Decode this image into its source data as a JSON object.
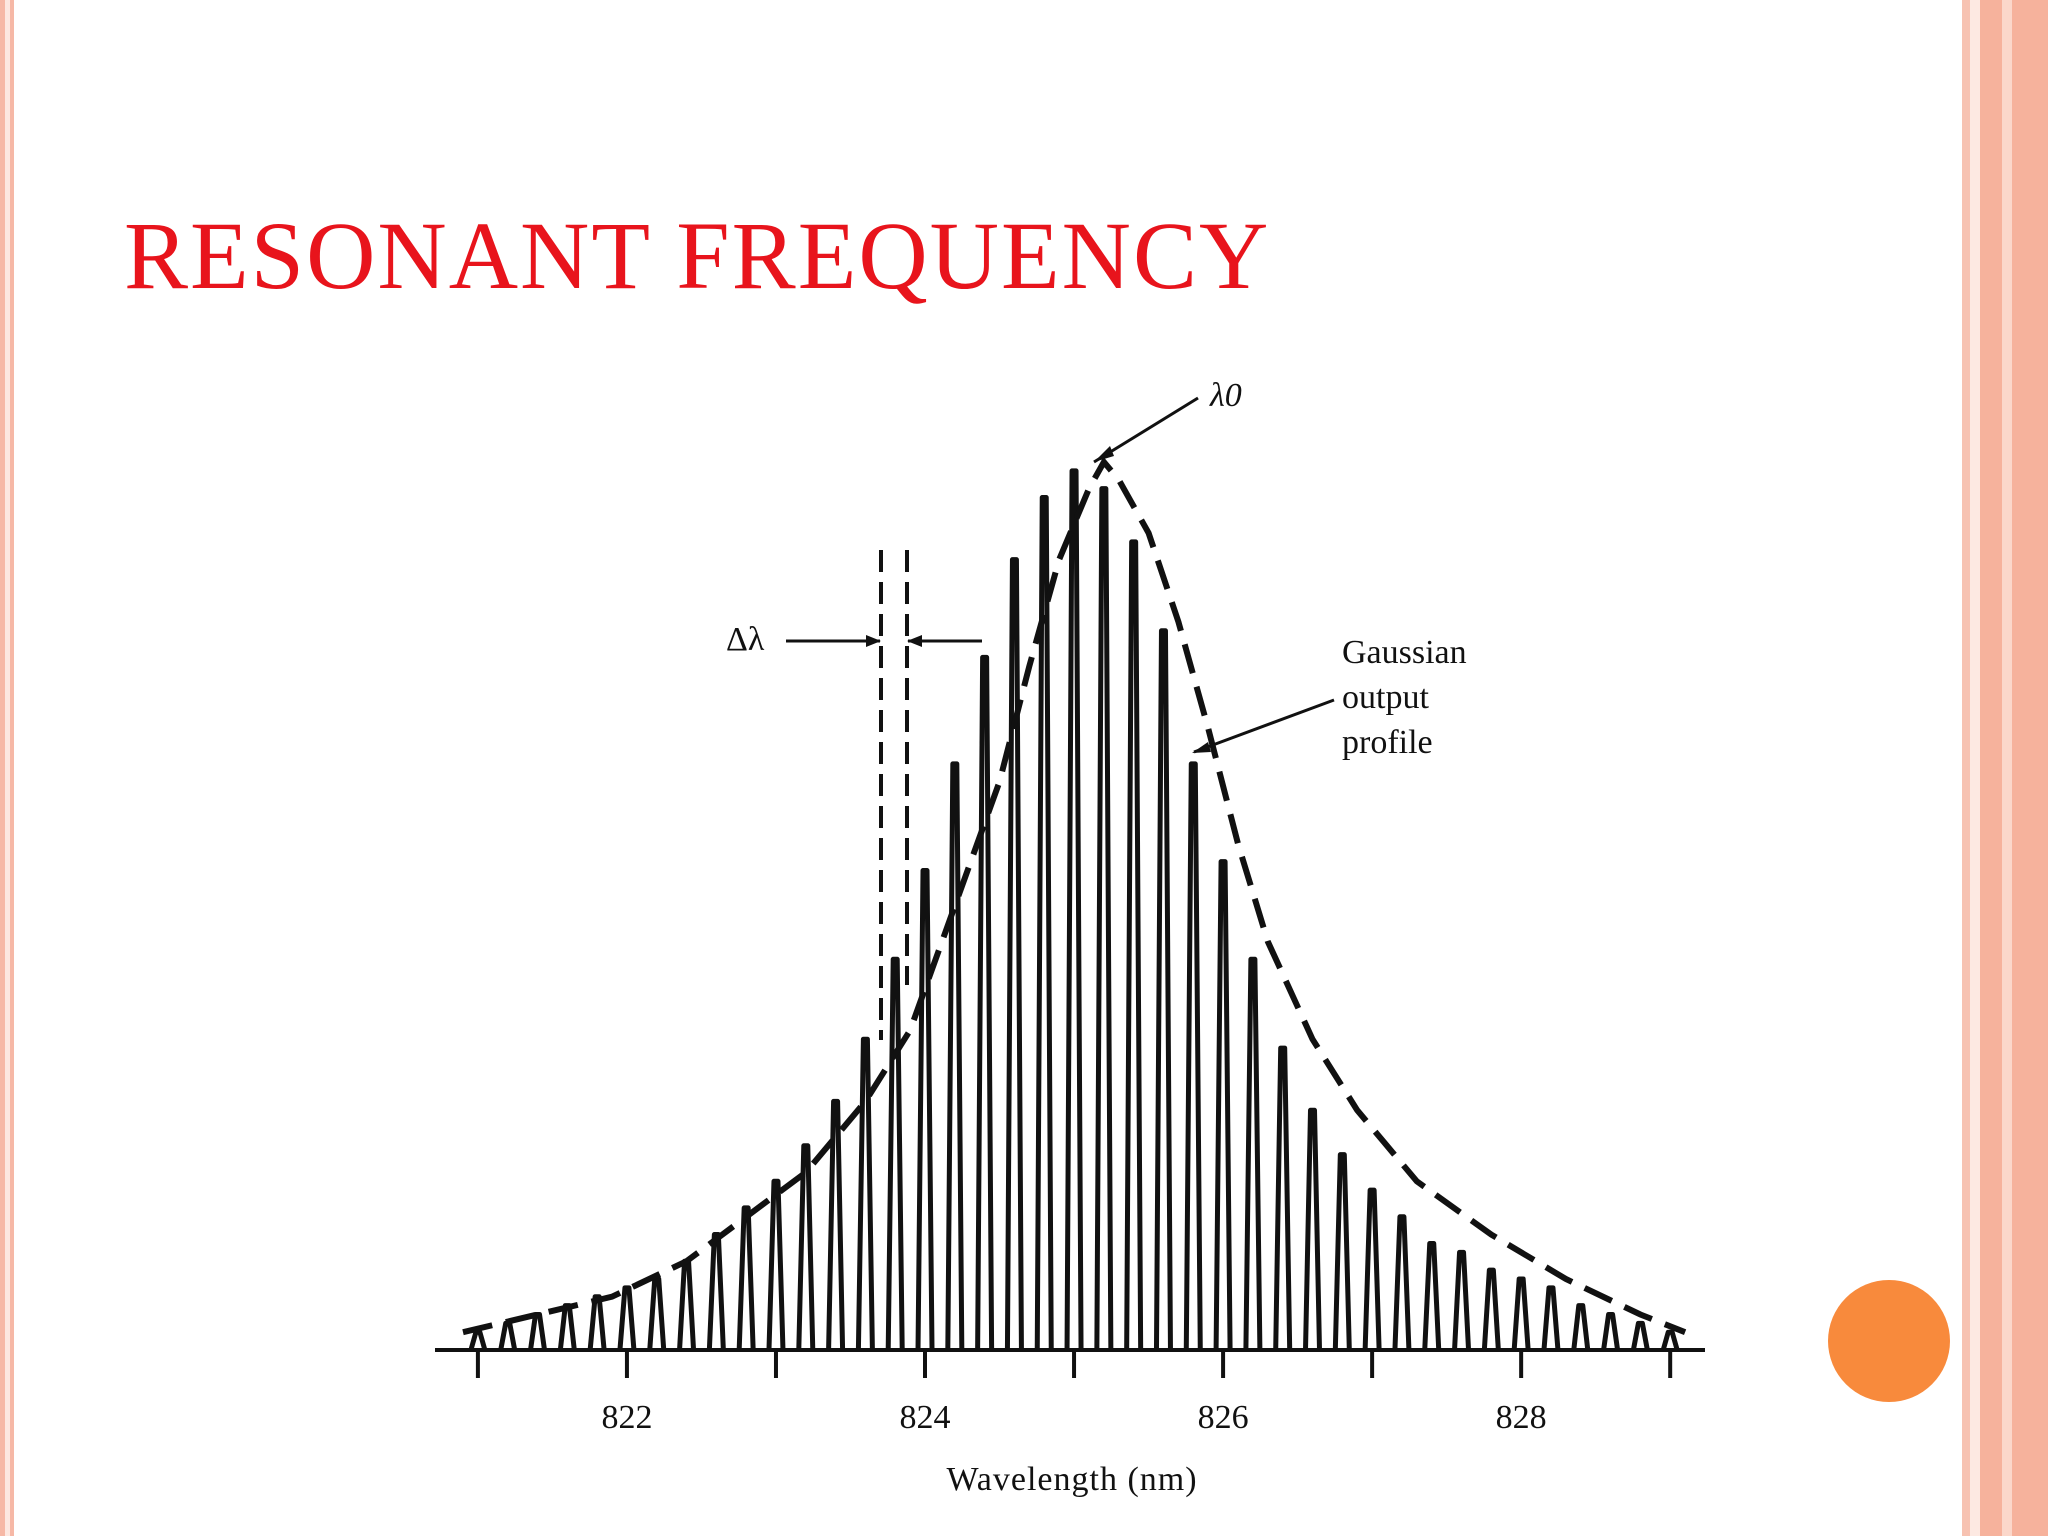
{
  "slide": {
    "title": "RESONANT FREQUENCY",
    "title_color": "#e8141c",
    "accent_color": "#f88a3c"
  },
  "chart_data": {
    "type": "line",
    "xlabel": "Wavelength (nm)",
    "ylabel": "",
    "title": "",
    "xticks": [
      821,
      822,
      823,
      824,
      825,
      826,
      827,
      828,
      829
    ],
    "xtick_labels": [
      "822",
      "824",
      "826",
      "828"
    ],
    "xlim": [
      820.9,
      829.2
    ],
    "ylim": [
      0,
      1
    ],
    "grid": false,
    "annotations": {
      "peak_label": "λ0",
      "spacing_label": "Δλ",
      "envelope_label": [
        "Gaussian",
        "output",
        "profile"
      ]
    },
    "series": [
      {
        "style": "solid spikes",
        "x": [
          821.0,
          821.2,
          821.4,
          821.6,
          821.8,
          822.0,
          822.2,
          822.4,
          822.6,
          822.8,
          823.0,
          823.2,
          823.4,
          823.6,
          823.8,
          824.0,
          824.2,
          824.4,
          824.6,
          824.8,
          825.0,
          825.2,
          825.4,
          825.6,
          825.8,
          826.0,
          826.2,
          826.4,
          826.6,
          826.8,
          827.0,
          827.2,
          827.4,
          827.6,
          827.8,
          828.0,
          828.2,
          828.4,
          828.6,
          828.8,
          829.0
        ],
        "y": [
          0.02,
          0.03,
          0.04,
          0.05,
          0.06,
          0.07,
          0.08,
          0.1,
          0.13,
          0.16,
          0.19,
          0.23,
          0.28,
          0.35,
          0.44,
          0.54,
          0.66,
          0.78,
          0.89,
          0.96,
          0.99,
          0.97,
          0.91,
          0.81,
          0.66,
          0.55,
          0.44,
          0.34,
          0.27,
          0.22,
          0.18,
          0.15,
          0.12,
          0.11,
          0.09,
          0.08,
          0.07,
          0.05,
          0.04,
          0.03,
          0.02
        ]
      },
      {
        "style": "dashed envelope",
        "x": [
          820.9,
          821.4,
          821.9,
          822.4,
          822.8,
          823.2,
          823.6,
          823.9,
          824.2,
          824.5,
          824.7,
          824.9,
          825.1,
          825.2,
          825.3,
          825.5,
          825.7,
          825.9,
          826.1,
          826.3,
          826.6,
          826.9,
          827.3,
          827.8,
          828.3,
          828.8,
          829.1
        ],
        "y": [
          0.02,
          0.04,
          0.06,
          0.1,
          0.15,
          0.2,
          0.28,
          0.36,
          0.5,
          0.64,
          0.77,
          0.89,
          0.97,
          1.0,
          0.98,
          0.92,
          0.82,
          0.7,
          0.57,
          0.46,
          0.35,
          0.27,
          0.19,
          0.13,
          0.08,
          0.04,
          0.02
        ]
      }
    ]
  }
}
